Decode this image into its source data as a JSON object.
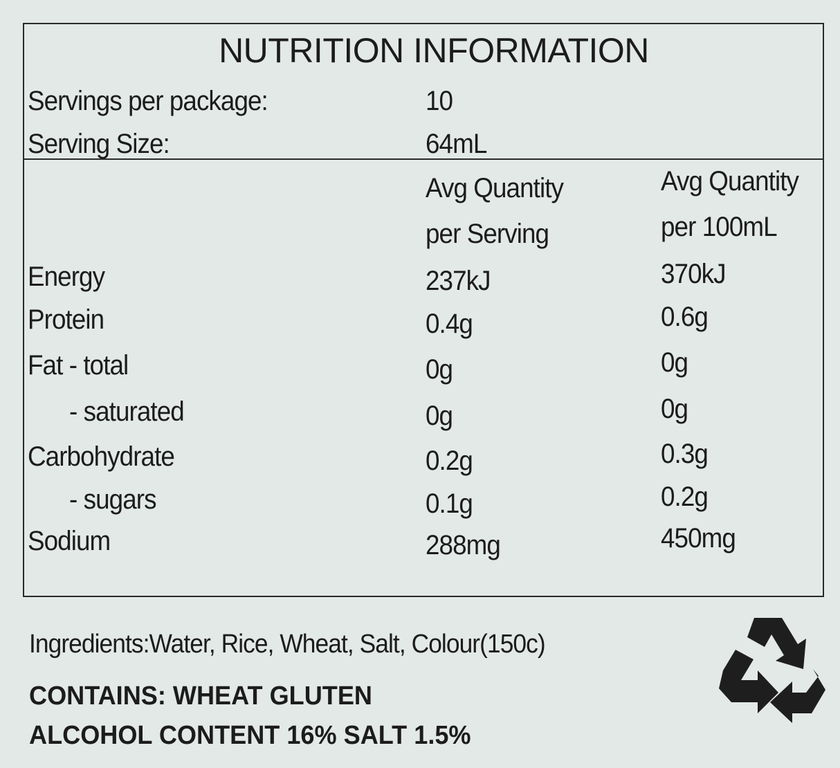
{
  "title": "NUTRITION INFORMATION",
  "servings": {
    "label": "Servings per package:",
    "value": "10"
  },
  "serving_size": {
    "label": "Serving Size:",
    "value": "64mL"
  },
  "table": {
    "headers": [
      [
        "Avg Quantity",
        "per Serving"
      ],
      [
        "Avg Quantity",
        "per 100mL"
      ]
    ],
    "rows": [
      [
        "Energy",
        "237kJ",
        "370kJ"
      ],
      [
        "Protein",
        "0.4g",
        "0.6g"
      ],
      [
        "Fat - total",
        "0g",
        "0g"
      ],
      [
        "- saturated",
        "0g",
        "0g"
      ],
      [
        "Carbohydrate",
        "0.2g",
        "0.3g"
      ],
      [
        "- sugars",
        "0.1g",
        "0.2g"
      ],
      [
        "Sodium",
        "288mg",
        "450mg"
      ]
    ]
  },
  "ingredients": "Ingredients:Water, Rice, Wheat, Salt, Colour(150c)",
  "contains": "CONTAINS: WHEAT GLUTEN",
  "alcohol": "ALCOHOL CONTENT 16% SALT 1.5%"
}
